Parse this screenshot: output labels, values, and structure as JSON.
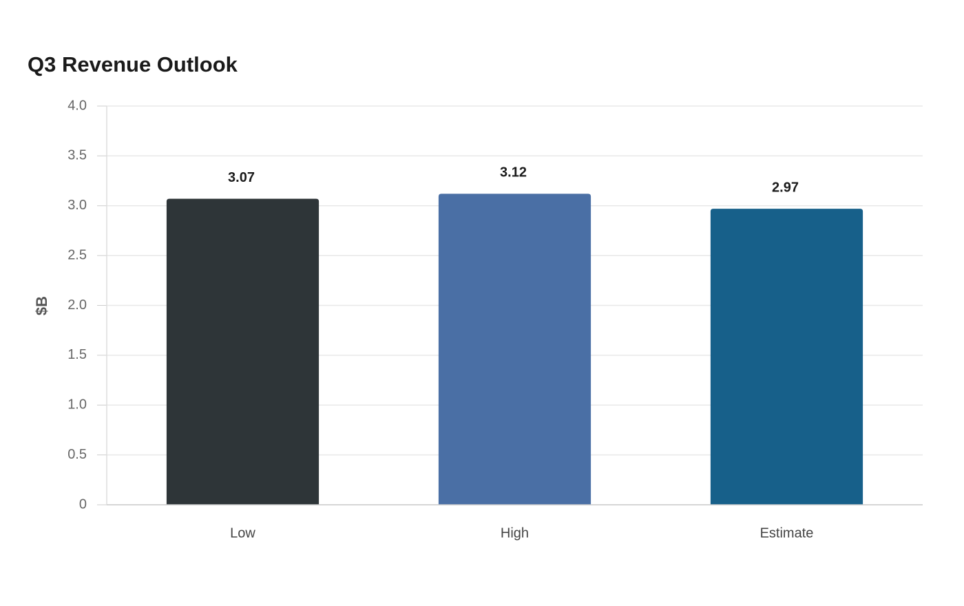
{
  "chart_data": {
    "type": "bar",
    "title": "Q3 Revenue Outlook",
    "y_label": "$B",
    "categories": [
      "Low",
      "High",
      "Estimate"
    ],
    "values": [
      3.07,
      3.12,
      2.97
    ],
    "colors": [
      "#2e3538",
      "#4a6fa5",
      "#17608a"
    ],
    "ylim": [
      0,
      4
    ],
    "yticks": [
      0,
      0.5,
      {
        "value": 1,
        "label": "1.0"
      },
      1.5,
      {
        "value": 2,
        "label": "2.0"
      },
      2.5,
      {
        "value": 3,
        "label": "3.0"
      },
      3.5,
      {
        "value": 4,
        "label": "4.0"
      }
    ],
    "grid": true
  }
}
